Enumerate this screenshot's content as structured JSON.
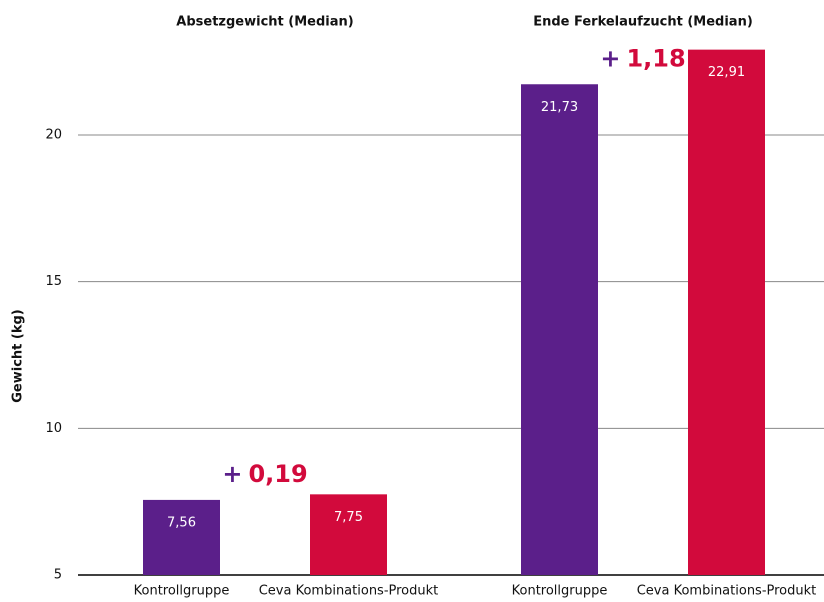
{
  "chart_data": {
    "type": "bar",
    "ylabel": "Gewicht (kg)",
    "categories": [
      "Absetzgewicht (Median)",
      "Ende Ferkelaufzucht (Median)"
    ],
    "series": [
      {
        "name": "Kontrollgruppe",
        "color": "#5b1f8a",
        "values": [
          7.56,
          21.73
        ],
        "value_labels": [
          "7,56",
          "21,73"
        ]
      },
      {
        "name": "Ceva Kombinations-Produkt",
        "color": "#d20a3c",
        "values": [
          7.75,
          22.91
        ],
        "value_labels": [
          "7,75",
          "22,91"
        ]
      }
    ],
    "annotations": [
      {
        "prefix": "+",
        "text": "0,19"
      },
      {
        "prefix": "+",
        "text": "1,18"
      }
    ],
    "ylim": [
      5,
      23
    ],
    "yticks": [
      5,
      10,
      15,
      20
    ],
    "grid": true
  }
}
